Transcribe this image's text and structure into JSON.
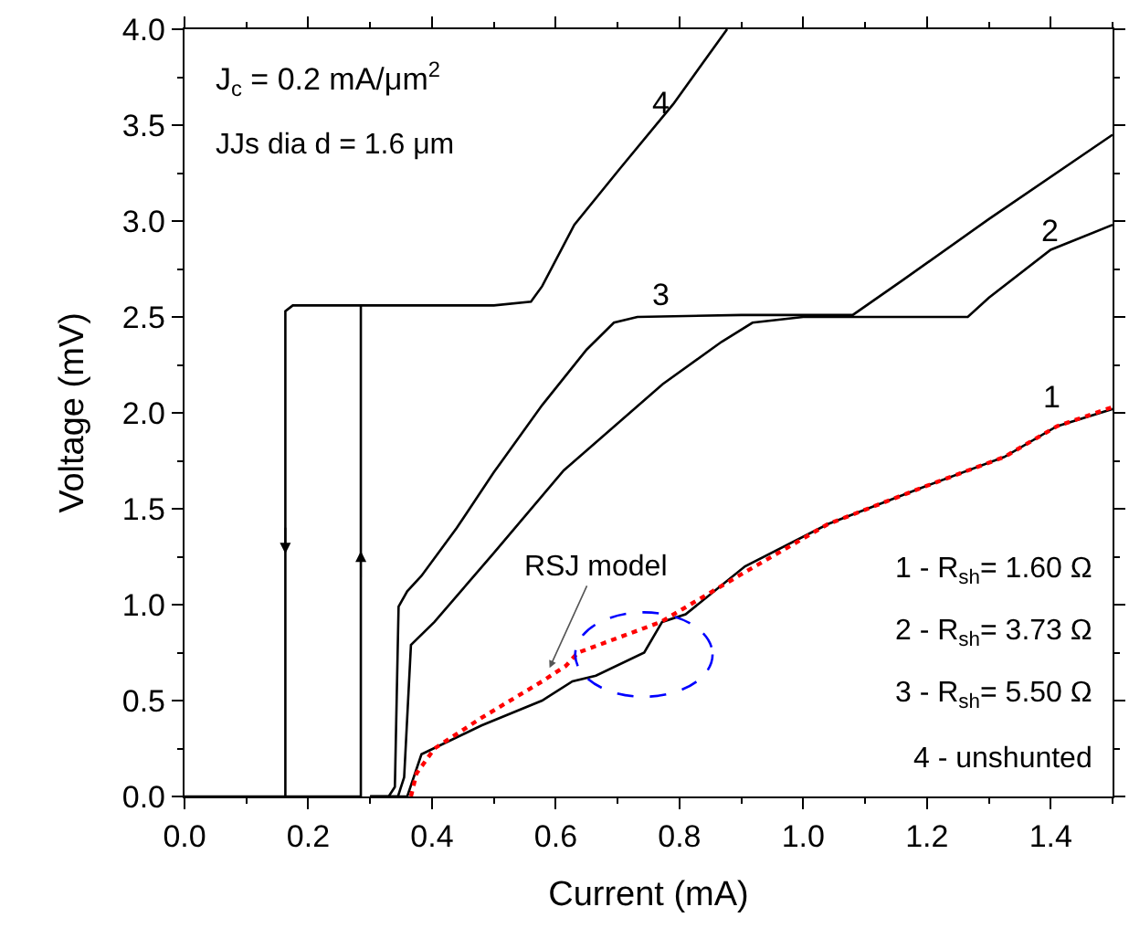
{
  "chart_data": {
    "type": "line",
    "xlabel": "Current (mA)",
    "ylabel": "Voltage (mV)",
    "xlim": [
      0,
      1.5
    ],
    "ylim": [
      0,
      4.0
    ],
    "xticks": [
      {
        "value": 0,
        "label": "0.0"
      },
      0.2,
      0.4,
      0.6,
      0.8,
      {
        "value": 1,
        "label": "1.0"
      },
      1.2,
      1.4
    ],
    "yticks": [
      {
        "value": 0,
        "label": "0.0"
      },
      0.5,
      {
        "value": 1,
        "label": "1.0"
      },
      1.5,
      {
        "value": 2,
        "label": "2.0"
      },
      2.5,
      {
        "value": 3,
        "label": "3.0"
      },
      3.5,
      {
        "value": 4,
        "label": "4.0"
      }
    ],
    "marker": "none",
    "series": [
      {
        "color": "#000000",
        "x": [
          0,
          0.285,
          0.285,
          0.3,
          0.4,
          0.5,
          0.56,
          0.578,
          0.63,
          0.703,
          0.79,
          0.877
        ],
        "values": [
          0,
          0,
          2.56,
          2.56,
          2.56,
          2.56,
          2.58,
          2.66,
          2.98,
          3.27,
          3.61,
          4.0
        ]
      },
      {
        "color": "#000000",
        "x": [
          0.285,
          0.175,
          0.163,
          0.163
        ],
        "values": [
          2.56,
          2.56,
          2.53,
          0
        ]
      },
      {
        "color": "#000000",
        "x": [
          0.3,
          0.33,
          0.34,
          0.346,
          0.36,
          0.383,
          0.44,
          0.5,
          0.578,
          0.65,
          0.694,
          0.732,
          0.9,
          1.08,
          1.16,
          1.3,
          1.5
        ],
        "values": [
          0,
          0,
          0.05,
          0.99,
          1.07,
          1.15,
          1.4,
          1.69,
          2.04,
          2.33,
          2.47,
          2.5,
          2.51,
          2.51,
          2.69,
          3.01,
          3.45
        ]
      },
      {
        "color": "#000000",
        "x": [
          0.3,
          0.345,
          0.355,
          0.366,
          0.404,
          0.5,
          0.613,
          0.773,
          0.868,
          0.918,
          1.0,
          1.266,
          1.3,
          1.4,
          1.5
        ],
        "values": [
          0,
          0,
          0.1,
          0.79,
          0.91,
          1.27,
          1.7,
          2.15,
          2.37,
          2.47,
          2.5,
          2.5,
          2.6,
          2.85,
          2.98
        ]
      },
      {
        "color": "#000000",
        "x": [
          0.3,
          0.36,
          0.383,
          0.48,
          0.578,
          0.627,
          0.665,
          0.743,
          0.772,
          0.81,
          0.906,
          1.04,
          1.2,
          1.325,
          1.41,
          1.5
        ],
        "values": [
          0,
          0,
          0.22,
          0.37,
          0.5,
          0.6,
          0.63,
          0.75,
          0.91,
          0.95,
          1.2,
          1.42,
          1.62,
          1.77,
          1.93,
          2.02
        ]
      },
      {
        "color": "#ff0000",
        "line_style": "dotted",
        "x": [
          0.366,
          0.375,
          0.404,
          0.48,
          0.578,
          0.616,
          0.636,
          0.77,
          0.906,
          1.04,
          1.2,
          1.325,
          1.41,
          1.5
        ],
        "values": [
          0,
          0.12,
          0.25,
          0.41,
          0.6,
          0.68,
          0.75,
          0.91,
          1.17,
          1.42,
          1.62,
          1.77,
          1.93,
          2.03
        ]
      }
    ],
    "annotations": [
      "J$_{c}$ = 0.2 mA/μm$^{2}$",
      "JJs dia d = 1.6 μm",
      "1 - R$_{sh}$= 1.60 Ω",
      "2 - R$_{sh}$= 3.73 Ω",
      "3 - R$_{sh}$= 5.50 Ω",
      "4 - unshunted",
      "4",
      "3",
      "2",
      "1",
      {
        "text": "RSJ model",
        "x": 0.59,
        "y": 0.67
      }
    ]
  }
}
